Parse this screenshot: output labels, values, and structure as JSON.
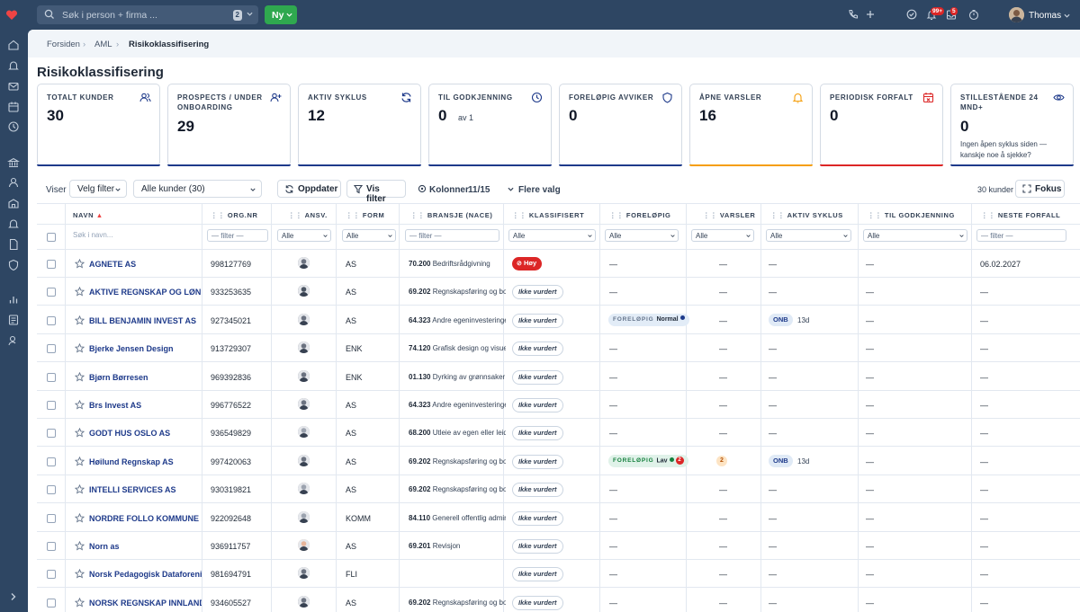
{
  "topbar": {
    "search_placeholder": "Søk i person + firma ...",
    "search_count": "2",
    "new_label": "Ny",
    "notif_badge": "99+",
    "inbox_badge": "5",
    "user_name": "Thomas"
  },
  "breadcrumb": [
    "Forsiden",
    "AML",
    "Risikoklassifisering"
  ],
  "page_title": "Risikoklassifisering",
  "cards": [
    {
      "label": "TOTALT KUNDER",
      "value": "30",
      "icon": "users-icon",
      "color": "#1e3a8a"
    },
    {
      "label": "PROSPECTS / UNDER ONBOARDING",
      "value": "29",
      "icon": "user-plus-icon",
      "color": "#1e3a8a"
    },
    {
      "label": "AKTIV SYKLUS",
      "value": "12",
      "icon": "refresh-icon",
      "color": "#1e3a8a"
    },
    {
      "label": "TIL GODKJENNING",
      "value": "0",
      "sub": "av 1",
      "icon": "clock-icon",
      "color": "#1e3a8a"
    },
    {
      "label": "FORELØPIG AVVIKER",
      "value": "0",
      "icon": "shield-icon",
      "color": "#1e3a8a"
    },
    {
      "label": "ÅPNE VARSLER",
      "value": "16",
      "icon": "bell-icon",
      "color": "#f59e0b"
    },
    {
      "label": "PERIODISK FORFALT",
      "value": "0",
      "icon": "calendar-alert-icon",
      "color": "#dc2626"
    },
    {
      "label": "STILLESTÅENDE 24 MND+",
      "value": "0",
      "note": "Ingen åpen syklus siden — kanskje noe å sjekke?",
      "icon": "eye-icon",
      "color": "#1e3a8a"
    }
  ],
  "toolbar": {
    "view_label": "Viser",
    "filter_select": "Velg filter",
    "customers_select": "Alle kunder (30)",
    "update_label": "Oppdater",
    "show_filter_label": "Vis filter",
    "columns_label": "Kolonner",
    "columns_count": "11/15",
    "more_label": "Flere valg",
    "count_text": "30 kunder",
    "focus_label": "Fokus"
  },
  "columns": [
    "NAVN",
    "ORG.NR",
    "ANSV.",
    "FORM",
    "BRANSJE (NACE)",
    "KLASSIFISERT",
    "FORELØPIG",
    "VARSLER",
    "AKTIV SYKLUS",
    "TIL GODKJENNING",
    "NESTE FORFALL"
  ],
  "filters": {
    "name_placeholder": "Søk i navn...",
    "text_filter": "— filter —",
    "all": "Alle"
  },
  "rows": [
    {
      "name": "AGNETE AS",
      "org": "998127769",
      "form": "AS",
      "nace_code": "70.200",
      "nace_desc": "Bedriftsrådgivning",
      "class": "Høy",
      "prel": "—",
      "varsler": "—",
      "syklus": "—",
      "godkj": "—",
      "forfall": "06.02.2027",
      "avatar": "#6b7280"
    },
    {
      "name": "AKTIVE REGNSKAP OG LØNN",
      "org": "933253635",
      "form": "AS",
      "nace_code": "69.202",
      "nace_desc": "Regnskapsføring og bokføring",
      "class": "Ikke vurdert",
      "prel": "—",
      "varsler": "—",
      "syklus": "—",
      "godkj": "—",
      "forfall": "—",
      "avatar": "#4b5563"
    },
    {
      "name": "BILL BENJAMIN INVEST AS",
      "org": "927345021",
      "form": "AS",
      "nace_code": "64.323",
      "nace_desc": "Andre egeninvesteringer",
      "class": "Ikke vurdert",
      "prel": "Normal",
      "prel_tag": "FORELØPIG",
      "prel_color": "#1e3a8a",
      "varsler": "—",
      "syklus": "ONB",
      "days": "13d",
      "godkj": "—",
      "forfall": "—",
      "avatar": "#6b7280"
    },
    {
      "name": "Bjerke Jensen Design",
      "org": "913729307",
      "form": "ENK",
      "nace_code": "74.120",
      "nace_desc": "Grafisk design og visuell kommunikasjon",
      "class": "Ikke vurdert",
      "prel": "—",
      "varsler": "—",
      "syklus": "—",
      "godkj": "—",
      "forfall": "—",
      "avatar": "#6b7280"
    },
    {
      "name": "Bjørn Børresen",
      "org": "969392836",
      "form": "ENK",
      "nace_code": "01.130",
      "nace_desc": "Dyrking av grønnsaker",
      "class": "Ikke vurdert",
      "prel": "—",
      "varsler": "—",
      "syklus": "—",
      "godkj": "—",
      "forfall": "—",
      "avatar": "#6b7280"
    },
    {
      "name": "Brs Invest AS",
      "org": "996776522",
      "form": "AS",
      "nace_code": "64.323",
      "nace_desc": "Andre egeninvesteringer",
      "class": "Ikke vurdert",
      "prel": "—",
      "varsler": "—",
      "syklus": "—",
      "godkj": "—",
      "forfall": "—",
      "avatar": "#6b7280"
    },
    {
      "name": "GODT HUS OSLO AS",
      "org": "936549829",
      "form": "AS",
      "nace_code": "68.200",
      "nace_desc": "Utleie av egen eller leid fast eiendom",
      "class": "Ikke vurdert",
      "prel": "—",
      "varsler": "—",
      "syklus": "—",
      "godkj": "—",
      "forfall": "—",
      "avatar": "#9ca3af"
    },
    {
      "name": "Høilund Regnskap AS",
      "org": "997420063",
      "form": "AS",
      "nace_code": "69.202",
      "nace_desc": "Regnskapsføring og bokføring",
      "class": "Ikke vurdert",
      "prel": "Lav",
      "prel_tag": "FORELØPIG",
      "prel_color": "#15803d",
      "prel_count": "2",
      "varsler": "2",
      "syklus": "ONB",
      "days": "13d",
      "godkj": "—",
      "forfall": "—",
      "avatar": "#6b7280"
    },
    {
      "name": "INTELLI SERVICES AS",
      "org": "930319821",
      "form": "AS",
      "nace_code": "69.202",
      "nace_desc": "Regnskapsføring og bokføring",
      "class": "Ikke vurdert",
      "prel": "—",
      "varsler": "—",
      "syklus": "—",
      "godkj": "—",
      "forfall": "—",
      "avatar": "#9ca3af"
    },
    {
      "name": "NORDRE FOLLO KOMMUNE",
      "org": "922092648",
      "form": "KOMM",
      "nace_code": "84.110",
      "nace_desc": "Generell offentlig administrasjon",
      "class": "Ikke vurdert",
      "prel": "—",
      "varsler": "—",
      "syklus": "—",
      "godkj": "—",
      "forfall": "—",
      "avatar": "#9ca3af"
    },
    {
      "name": "Norn as",
      "org": "936911757",
      "form": "AS",
      "nace_code": "69.201",
      "nace_desc": "Revisjon",
      "class": "Ikke vurdert",
      "prel": "—",
      "varsler": "—",
      "syklus": "—",
      "godkj": "—",
      "forfall": "—",
      "avatar": "#e7b49a"
    },
    {
      "name": "Norsk Pedagogisk Dataforening",
      "org": "981694791",
      "form": "FLI",
      "nace_code": "",
      "nace_desc": "",
      "class": "Ikke vurdert",
      "prel": "—",
      "varsler": "—",
      "syklus": "—",
      "godkj": "—",
      "forfall": "—",
      "avatar": "#6b7280"
    },
    {
      "name": "NORSK REGNSKAP INNLANDET",
      "org": "934605527",
      "form": "AS",
      "nace_code": "69.202",
      "nace_desc": "Regnskapsføring og bokføring",
      "class": "Ikke vurdert",
      "prel": "—",
      "varsler": "—",
      "syklus": "—",
      "godkj": "—",
      "forfall": "—",
      "avatar": "#6b7280"
    }
  ]
}
